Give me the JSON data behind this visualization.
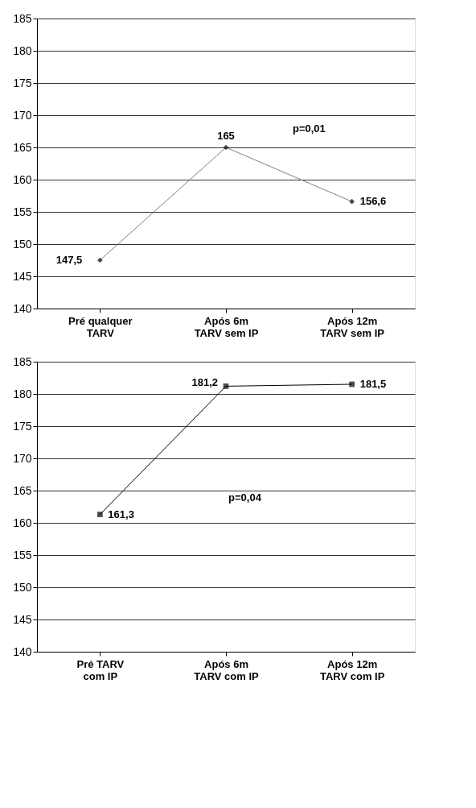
{
  "chart_data": [
    {
      "type": "line",
      "categories": [
        "Pré qualquer\nTARV",
        "Após 6m\nTARV sem IP",
        "Após 12m\nTARV sem IP"
      ],
      "series": [
        {
          "color": "#808080",
          "values": [
            147.5,
            165,
            156.6
          ],
          "value_labels": [
            "147,5",
            "165",
            "156,6"
          ]
        }
      ],
      "ylim": [
        140,
        185
      ],
      "yticks": [
        140,
        145,
        150,
        155,
        160,
        165,
        170,
        175,
        180,
        185
      ],
      "grid": "y",
      "marker": "diamond",
      "line_style": "solid",
      "annotations": [
        "p=0,01"
      ]
    },
    {
      "type": "line",
      "categories": [
        "Pré TARV\ncom IP",
        "Após 6m\nTARV com IP",
        "Após 12m\nTARV com IP"
      ],
      "series": [
        {
          "color": "#000000",
          "values": [
            161.3,
            181.2,
            181.5
          ],
          "value_labels": [
            "161,3",
            "181,2",
            "181,5"
          ]
        }
      ],
      "ylim": [
        140,
        185
      ],
      "yticks": [
        140,
        145,
        150,
        155,
        160,
        165,
        170,
        175,
        180,
        185
      ],
      "grid": "y",
      "marker": "square",
      "line_style": "solid",
      "annotations": [
        "p=0,04"
      ]
    }
  ]
}
